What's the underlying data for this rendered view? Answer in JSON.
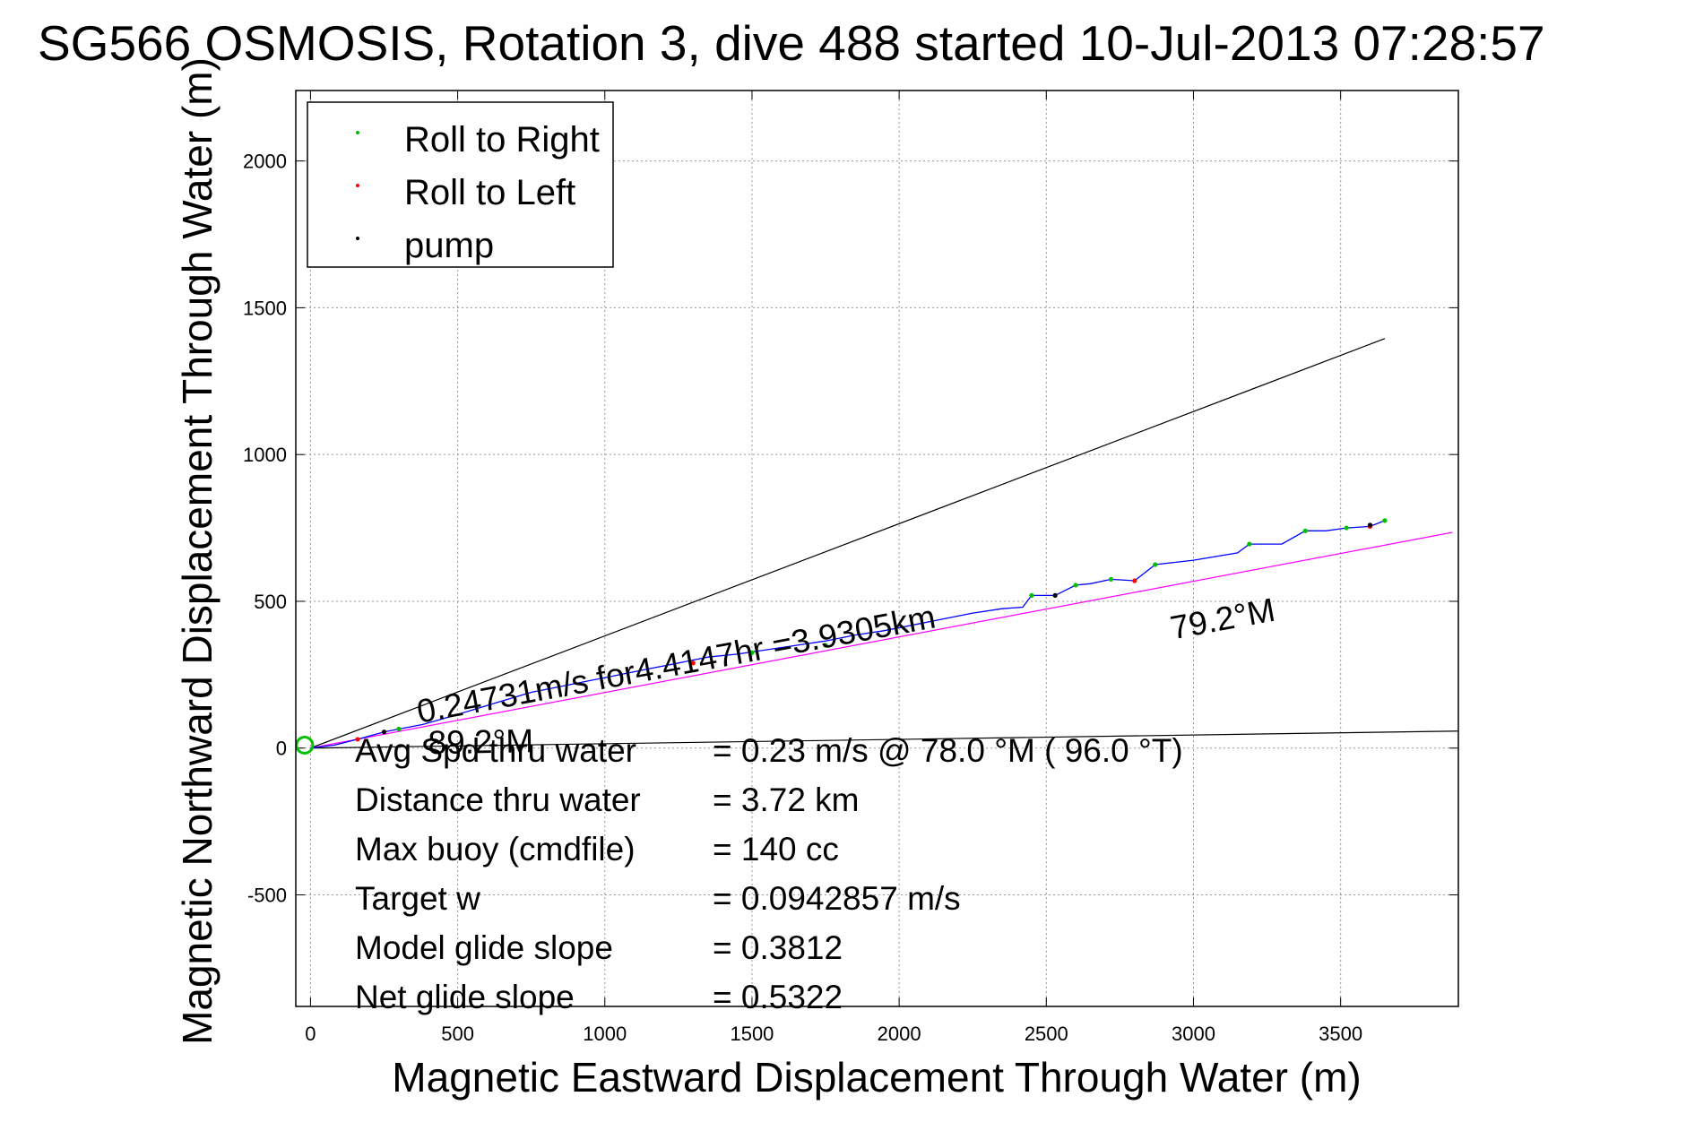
{
  "chart_data": {
    "type": "line",
    "title": "SG566 OSMOSIS, Rotation 3, dive 488 started 10-Jul-2013 07:28:57",
    "xlabel": "Magnetic Eastward Displacement Through Water (m)",
    "ylabel": "Magnetic Northward Displacement Through Water (m)",
    "xlim": [
      -50,
      3900
    ],
    "ylim": [
      -880,
      2240
    ],
    "xticks": [
      0,
      500,
      1000,
      1500,
      2000,
      2500,
      3000,
      3500
    ],
    "yticks": [
      -500,
      0,
      500,
      1000,
      1500,
      2000
    ],
    "grid": true,
    "legend_position": "top-left",
    "legend": [
      {
        "label": "Roll to Right",
        "color": "#00c000"
      },
      {
        "label": "Roll to Left",
        "color": "#ff0000"
      },
      {
        "label": "pump",
        "color": "#000000"
      }
    ],
    "track": {
      "color": "#0000ff",
      "x": [
        0,
        80,
        160,
        250,
        300,
        380,
        450,
        550,
        650,
        750,
        850,
        950,
        1050,
        1150,
        1250,
        1350,
        1450,
        1550,
        1650,
        1750,
        1850,
        1950,
        2050,
        2150,
        2250,
        2350,
        2420,
        2450,
        2530,
        2600,
        2650,
        2720,
        2800,
        2870,
        3000,
        3150,
        3190,
        3300,
        3380,
        3450,
        3520,
        3600,
        3650
      ],
      "y": [
        0,
        10,
        30,
        55,
        65,
        80,
        100,
        130,
        160,
        190,
        210,
        230,
        250,
        270,
        290,
        310,
        320,
        335,
        350,
        365,
        385,
        400,
        420,
        440,
        460,
        475,
        480,
        520,
        520,
        555,
        560,
        575,
        570,
        625,
        640,
        665,
        695,
        695,
        740,
        740,
        750,
        755,
        775
      ]
    },
    "roll_right_points": {
      "x": [
        300,
        1500,
        1750,
        2450,
        2600,
        2720,
        2870,
        3190,
        3380,
        3520,
        3650
      ],
      "y": [
        65,
        325,
        350,
        520,
        555,
        575,
        625,
        695,
        740,
        750,
        775
      ]
    },
    "roll_left_points": {
      "x": [
        160,
        1300,
        2800,
        3600
      ],
      "y": [
        30,
        290,
        570,
        755
      ]
    },
    "pump_points": {
      "x": [
        250,
        2530,
        3600
      ],
      "y": [
        55,
        520,
        760
      ]
    },
    "start_marker": {
      "x": -20,
      "y": 10,
      "color": "#00c000"
    },
    "lines": [
      {
        "name": "upper-heading-line",
        "color": "#000000",
        "x": [
          0,
          3650
        ],
        "y": [
          0,
          1395
        ]
      },
      {
        "name": "lower-heading-line",
        "color": "#000000",
        "x": [
          0,
          3900
        ],
        "y": [
          0,
          58
        ]
      },
      {
        "name": "magenta-heading-line",
        "color": "#ff00ff",
        "x": [
          0,
          3880
        ],
        "y": [
          0,
          735
        ]
      }
    ],
    "annotations": [
      {
        "text": "0.24731m/s for4.4147hr =3.9305km",
        "x": 370,
        "y": 85,
        "rotation": -10.5
      },
      {
        "text": "79.2°M",
        "x": 2930,
        "y": 370,
        "rotation": -10.5
      },
      {
        "text": "89.2°M",
        "x": 400,
        "y": -20,
        "rotation": -1
      }
    ],
    "stats": [
      {
        "label": "Avg Spd thru water",
        "value": "=  0.23 m/s @  78.0 °M ( 96.0 °T)"
      },
      {
        "label": "Distance thru water",
        "value": "=  3.72 km"
      },
      {
        "label": "Max buoy (cmdfile)",
        "value": "= 140 cc"
      },
      {
        "label": "Target w",
        "value": "= 0.0942857 m/s"
      },
      {
        "label": "Model glide slope",
        "value": "= 0.3812"
      },
      {
        "label": "Net glide slope",
        "value": "= 0.5322"
      }
    ]
  }
}
